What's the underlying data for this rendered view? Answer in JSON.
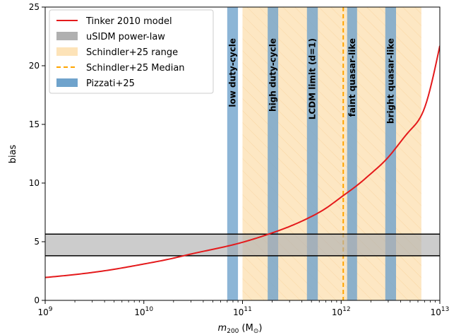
{
  "chart_data": {
    "type": "line",
    "xlabel_main": "m",
    "xlabel_sub": "200",
    "xlabel_unit_open": " (M",
    "xlabel_unit_close": ")",
    "xlabel_unit_sub": "⊙",
    "ylabel": "bias",
    "xscale": "log",
    "xlim": [
      1000000000.0,
      10000000000000.0
    ],
    "ylim": [
      0,
      25
    ],
    "x_ticks": [
      {
        "value": 1000000000.0,
        "base": "10",
        "exp": "9"
      },
      {
        "value": 10000000000.0,
        "base": "10",
        "exp": "10"
      },
      {
        "value": 100000000000.0,
        "base": "10",
        "exp": "11"
      },
      {
        "value": 1000000000000.0,
        "base": "10",
        "exp": "12"
      },
      {
        "value": 10000000000000.0,
        "base": "10",
        "exp": "13"
      }
    ],
    "y_ticks": [
      0,
      5,
      10,
      15,
      20,
      25
    ],
    "tinker_curve": {
      "name": "Tinker 2010 model",
      "color": "#e41a1c",
      "x": [
        1000000000.0,
        2000000000.0,
        5000000000.0,
        10000000000.0,
        20000000000.0,
        30000000000.0,
        50000000000.0,
        70000000000.0,
        100000000000.0,
        150000000000.0,
        200000000000.0,
        300000000000.0,
        500000000000.0,
        700000000000.0,
        1000000000000.0,
        1500000000000.0,
        2000000000000.0,
        3000000000000.0,
        5000000000000.0,
        7000000000000.0,
        10000000000000.0
      ],
      "y": [
        1.95,
        2.2,
        2.65,
        3.1,
        3.6,
        3.95,
        4.35,
        4.62,
        4.95,
        5.4,
        5.75,
        6.3,
        7.15,
        7.85,
        8.8,
        9.9,
        10.8,
        12.2,
        14.5,
        16.4,
        21.7
      ]
    },
    "usidm_band": {
      "name": "uSIDM power-law",
      "y_low": 3.8,
      "y_high": 5.65,
      "color": "#b0b0b0"
    },
    "schindler_range": {
      "name": "Schindler+25 range",
      "x_low": 100000000000.0,
      "x_high": 6500000000000.0,
      "color": "#fde3b8"
    },
    "schindler_median": {
      "name": "Schindler+25 Median",
      "x": 1050000000000.0,
      "color": "#ffa500"
    },
    "pizzati_bands": {
      "name": "Pizzati+25",
      "color": "#6fa3cc",
      "items": [
        {
          "label": "low duty-cycle",
          "x_low": 70000000000.0,
          "x_high": 90000000000.0
        },
        {
          "label": "high duty-cycle",
          "x_low": 180000000000.0,
          "x_high": 230000000000.0
        },
        {
          "label": "LCDM limit (d=1)",
          "x_low": 450000000000.0,
          "x_high": 580000000000.0
        },
        {
          "label": "faint quasar-like",
          "x_low": 1150000000000.0,
          "x_high": 1450000000000.0
        },
        {
          "label": "bright quasar-like",
          "x_low": 2800000000000.0,
          "x_high": 3600000000000.0
        }
      ]
    },
    "legend": {
      "placement": "top-left",
      "entries": [
        {
          "label": "Tinker 2010 model",
          "kind": "line",
          "color": "#e41a1c"
        },
        {
          "label": "uSIDM power-law",
          "kind": "patch",
          "color": "#b0b0b0"
        },
        {
          "label": "Schindler+25 range",
          "kind": "patch",
          "color": "#fde3b8"
        },
        {
          "label": "Schindler+25 Median",
          "kind": "dashed",
          "color": "#ffa500"
        },
        {
          "label": "Pizzati+25",
          "kind": "patch",
          "color": "#6fa3cc"
        }
      ]
    },
    "grid": false
  }
}
